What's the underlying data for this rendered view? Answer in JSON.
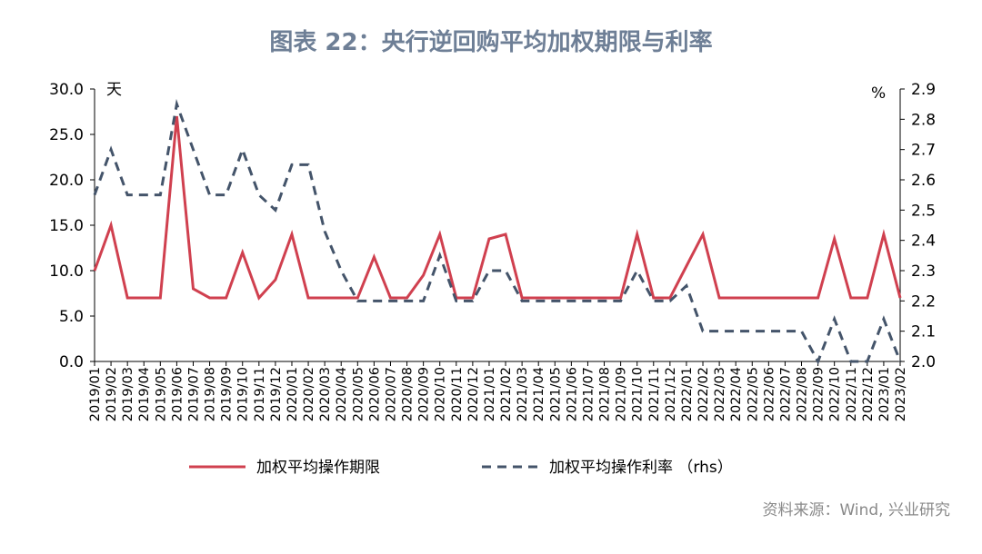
{
  "chart_data": {
    "type": "line",
    "title": "图表 22：央行逆回购平均加权期限与利率",
    "source": "资料来源：Wind, 兴业研究",
    "y_unit": "天",
    "y2_unit": "%",
    "categories": [
      "2019/01",
      "2019/02",
      "2019/03",
      "2019/04",
      "2019/05",
      "2019/06",
      "2019/07",
      "2019/08",
      "2019/09",
      "2019/10",
      "2019/11",
      "2019/12",
      "2020/01",
      "2020/02",
      "2020/03",
      "2020/04",
      "2020/05",
      "2020/06",
      "2020/07",
      "2020/08",
      "2020/09",
      "2020/10",
      "2020/11",
      "2020/12",
      "2021/01",
      "2021/02",
      "2021/03",
      "2021/04",
      "2021/05",
      "2021/06",
      "2021/07",
      "2021/08",
      "2021/09",
      "2021/10",
      "2021/11",
      "2021/12",
      "2022/01",
      "2022/02",
      "2022/03",
      "2022/04",
      "2022/05",
      "2022/06",
      "2022/07",
      "2022/08",
      "2022/09",
      "2022/10",
      "2022/11",
      "2022/12",
      "2023/01",
      "2023/02"
    ],
    "series": [
      {
        "name": "加权平均操作期限",
        "color": "#d0404f",
        "dash": false,
        "values": [
          10,
          15,
          7,
          7,
          7,
          27,
          8,
          7,
          7,
          12,
          7,
          9,
          14,
          7,
          7,
          7,
          7,
          11.5,
          7,
          7,
          9.5,
          14,
          7,
          7,
          13.5,
          14,
          7,
          7,
          7,
          7,
          7,
          7,
          7,
          14,
          7,
          7,
          10.5,
          14,
          7,
          7,
          7,
          7,
          7,
          7,
          7,
          13.5,
          7,
          7,
          14,
          7
        ]
      },
      {
        "name": "加权平均操作利率 （rhs）",
        "color": "#44546a",
        "dash": true,
        "axis": "y2",
        "values": [
          2.55,
          2.7,
          2.55,
          2.55,
          2.55,
          2.85,
          2.7,
          2.55,
          2.55,
          2.7,
          2.55,
          2.5,
          2.65,
          2.65,
          2.43,
          2.3,
          2.2,
          2.2,
          2.2,
          2.2,
          2.2,
          2.35,
          2.2,
          2.2,
          2.3,
          2.3,
          2.2,
          2.2,
          2.2,
          2.2,
          2.2,
          2.2,
          2.2,
          2.3,
          2.2,
          2.2,
          2.25,
          2.1,
          2.1,
          2.1,
          2.1,
          2.1,
          2.1,
          2.1,
          2.0,
          2.14,
          2.0,
          2.0,
          2.14,
          2.0
        ]
      }
    ],
    "ylim": [
      0,
      30
    ],
    "yticks": [
      {
        "value": 0,
        "label": "0.0"
      },
      {
        "value": 5,
        "label": "5.0"
      },
      {
        "value": 10,
        "label": "10.0"
      },
      {
        "value": 15,
        "label": "15.0"
      },
      {
        "value": 20,
        "label": "20.0"
      },
      {
        "value": 25,
        "label": "25.0"
      },
      {
        "value": 30,
        "label": "30.0"
      }
    ],
    "y2lim": [
      2.0,
      2.9
    ],
    "y2ticks": [
      {
        "value": 2.0,
        "label": "2.0"
      },
      2.1,
      2.2,
      2.3,
      2.4,
      2.5,
      2.6,
      2.7,
      2.8,
      2.9
    ],
    "legend": "bottom"
  }
}
